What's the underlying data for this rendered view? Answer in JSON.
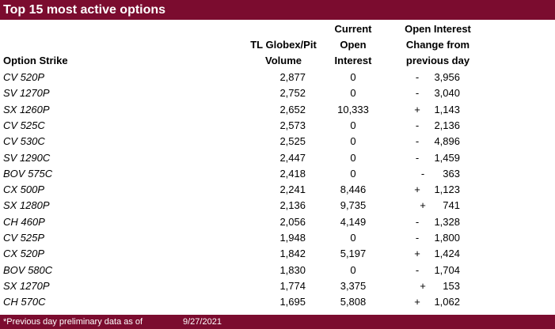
{
  "title": "Top 15 most active options",
  "headers": {
    "strike": "Option Strike",
    "volume": [
      "TL Globex/Pit",
      "Volume"
    ],
    "oi": [
      "Current",
      "Open",
      "Interest"
    ],
    "change": [
      "Open Interest",
      "Change from",
      "previous day"
    ]
  },
  "rows": [
    {
      "strike": "CV 520P",
      "volume": "2,877",
      "oi": "0",
      "sign": "-",
      "change": "3,956"
    },
    {
      "strike": "SV 1270P",
      "volume": "2,752",
      "oi": "0",
      "sign": "-",
      "change": "3,040"
    },
    {
      "strike": "SX 1260P",
      "volume": "2,652",
      "oi": "10,333",
      "sign": "+",
      "change": "1,143"
    },
    {
      "strike": "CV 525C",
      "volume": "2,573",
      "oi": "0",
      "sign": "-",
      "change": "2,136"
    },
    {
      "strike": "CV 530C",
      "volume": "2,525",
      "oi": "0",
      "sign": "-",
      "change": "4,896"
    },
    {
      "strike": "SV 1290C",
      "volume": "2,447",
      "oi": "0",
      "sign": "-",
      "change": "1,459"
    },
    {
      "strike": "BOV 575C",
      "volume": "2,418",
      "oi": "0",
      "sign": "-",
      "change": "363"
    },
    {
      "strike": "CX 500P",
      "volume": "2,241",
      "oi": "8,446",
      "sign": "+",
      "change": "1,123"
    },
    {
      "strike": "SX 1280P",
      "volume": "2,136",
      "oi": "9,735",
      "sign": "+",
      "change": "741"
    },
    {
      "strike": "CH 460P",
      "volume": "2,056",
      "oi": "4,149",
      "sign": "-",
      "change": "1,328"
    },
    {
      "strike": "CV 525P",
      "volume": "1,948",
      "oi": "0",
      "sign": "-",
      "change": "1,800"
    },
    {
      "strike": "CX 520P",
      "volume": "1,842",
      "oi": "5,197",
      "sign": "+",
      "change": "1,424"
    },
    {
      "strike": "BOV 580C",
      "volume": "1,830",
      "oi": "0",
      "sign": "-",
      "change": "1,704"
    },
    {
      "strike": "SX 1270P",
      "volume": "1,774",
      "oi": "3,375",
      "sign": "+",
      "change": "153"
    },
    {
      "strike": "CH 570C",
      "volume": "1,695",
      "oi": "5,808",
      "sign": "+",
      "change": "1,062"
    }
  ],
  "footer": {
    "note": "*Previous day preliminary data as of",
    "date": "9/27/2021"
  }
}
